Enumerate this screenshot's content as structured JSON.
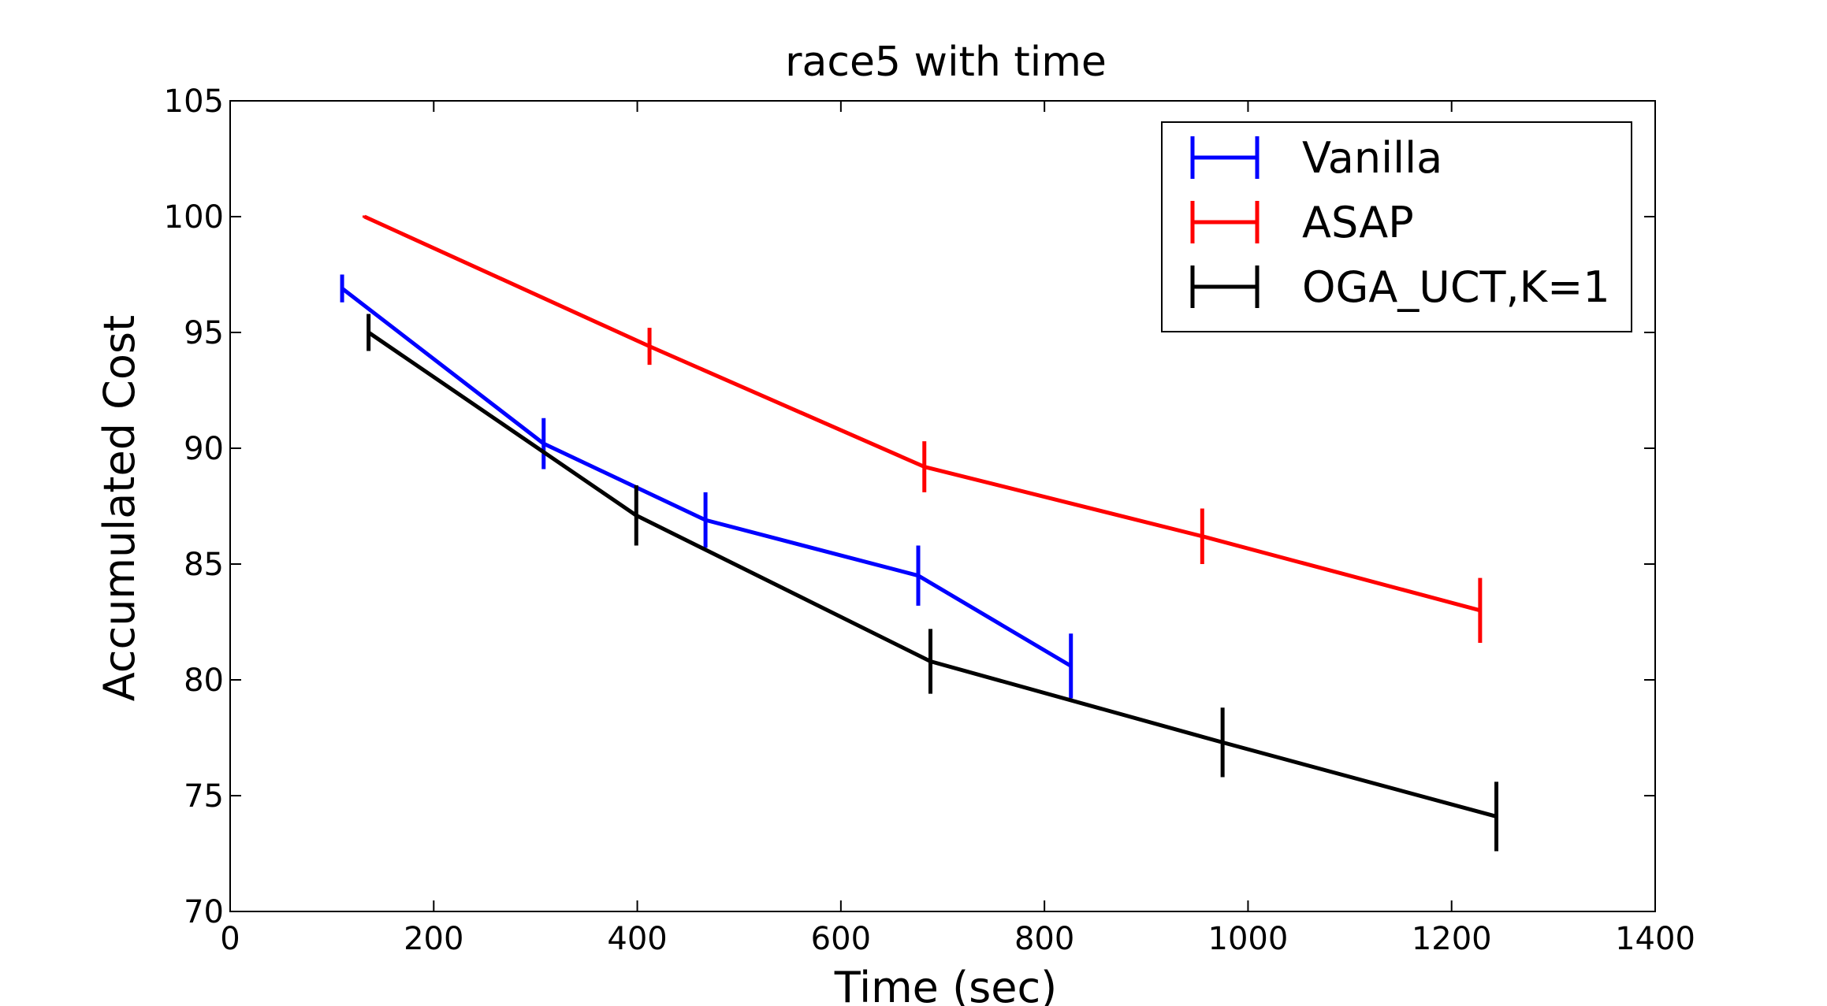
{
  "chart_data": {
    "type": "line",
    "title": "race5 with time",
    "xlabel": "Time (sec)",
    "ylabel": "Accumulated Cost",
    "xlim": [
      0,
      1400
    ],
    "ylim": [
      70,
      105
    ],
    "xticks": [
      0,
      200,
      400,
      600,
      800,
      1000,
      1200,
      1400
    ],
    "yticks": [
      70,
      75,
      80,
      85,
      90,
      95,
      100,
      105
    ],
    "xtick_labels": [
      "0",
      "200",
      "400",
      "600",
      "800",
      "1000",
      "1200",
      "1400"
    ],
    "ytick_labels": [
      "70",
      "75",
      "80",
      "85",
      "90",
      "95",
      "100",
      "105"
    ],
    "grid": false,
    "legend_position": "top-right",
    "series": [
      {
        "name": "Vanilla",
        "color": "#0000ff",
        "x": [
          110,
          308,
          467,
          676,
          826
        ],
        "y": [
          96.9,
          90.2,
          86.9,
          84.5,
          80.6
        ],
        "yerr": [
          0.6,
          1.1,
          1.2,
          1.3,
          1.4
        ]
      },
      {
        "name": "ASAP",
        "color": "#ff0000",
        "x": [
          132,
          412,
          682,
          955,
          1228
        ],
        "y": [
          100.0,
          94.4,
          89.2,
          86.2,
          83.0
        ],
        "yerr": [
          0.05,
          0.8,
          1.1,
          1.2,
          1.4
        ]
      },
      {
        "name": "OGA_UCT,K=1",
        "color": "#000000",
        "x": [
          136,
          399,
          688,
          975,
          1244
        ],
        "y": [
          95.0,
          87.1,
          80.8,
          77.3,
          74.1
        ],
        "yerr": [
          0.8,
          1.3,
          1.4,
          1.5,
          1.5
        ]
      }
    ]
  }
}
